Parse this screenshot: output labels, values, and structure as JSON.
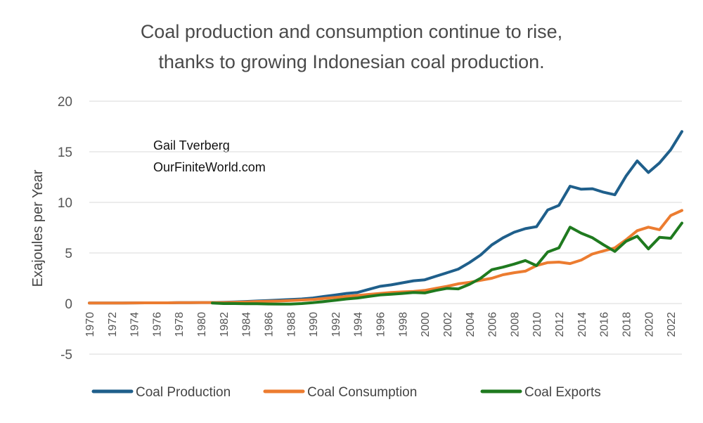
{
  "chart_data": {
    "type": "line",
    "title_line1": "Coal production and consumption continue to rise,",
    "title_line2": "thanks to growing Indonesian coal production.",
    "annotation_line1": "Gail Tverberg",
    "annotation_line2": "OurFiniteWorld.com",
    "xlabel": "",
    "ylabel": "Exajoules per Year",
    "ylim": [
      -5,
      20
    ],
    "y_ticks": [
      -5,
      0,
      5,
      10,
      15,
      20
    ],
    "x_tick_labels": [
      "1970",
      "1972",
      "1974",
      "1976",
      "1978",
      "1980",
      "1982",
      "1984",
      "1986",
      "1988",
      "1990",
      "1992",
      "1994",
      "1996",
      "1998",
      "2000",
      "2002",
      "2004",
      "2006",
      "2008",
      "2010",
      "2012",
      "2014",
      "2016",
      "2018",
      "2020",
      "2022"
    ],
    "grid": true,
    "legend_position": "bottom",
    "x": [
      1970,
      1971,
      1972,
      1973,
      1974,
      1975,
      1976,
      1977,
      1978,
      1979,
      1980,
      1981,
      1982,
      1983,
      1984,
      1985,
      1986,
      1987,
      1988,
      1989,
      1990,
      1991,
      1992,
      1993,
      1994,
      1995,
      1996,
      1997,
      1998,
      1999,
      2000,
      2001,
      2002,
      2003,
      2004,
      2005,
      2006,
      2007,
      2008,
      2009,
      2010,
      2011,
      2012,
      2013,
      2014,
      2015,
      2016,
      2017,
      2018,
      2019,
      2020,
      2021,
      2022,
      2023
    ],
    "series": [
      {
        "name": "Coal Production",
        "color": "#1f5f8b",
        "values": [
          0.05,
          0.05,
          0.05,
          0.05,
          0.06,
          0.07,
          0.07,
          0.07,
          0.08,
          0.08,
          0.1,
          0.1,
          0.12,
          0.15,
          0.2,
          0.25,
          0.3,
          0.35,
          0.4,
          0.45,
          0.55,
          0.7,
          0.85,
          1.0,
          1.1,
          1.4,
          1.7,
          1.85,
          2.05,
          2.25,
          2.35,
          2.7,
          3.05,
          3.4,
          4.05,
          4.8,
          5.8,
          6.5,
          7.05,
          7.4,
          7.6,
          9.25,
          9.7,
          11.6,
          11.3,
          11.35,
          11.0,
          10.75,
          12.6,
          14.1,
          12.95,
          13.9,
          15.2,
          17.0
        ]
      },
      {
        "name": "Coal Consumption",
        "color": "#ec7c30",
        "values": [
          0.05,
          0.05,
          0.05,
          0.05,
          0.06,
          0.07,
          0.07,
          0.07,
          0.08,
          0.08,
          0.1,
          0.1,
          0.1,
          0.12,
          0.15,
          0.2,
          0.22,
          0.25,
          0.3,
          0.35,
          0.4,
          0.5,
          0.6,
          0.7,
          0.8,
          0.9,
          1.0,
          1.1,
          1.15,
          1.2,
          1.3,
          1.5,
          1.7,
          1.95,
          2.1,
          2.3,
          2.5,
          2.85,
          3.05,
          3.2,
          3.75,
          4.05,
          4.1,
          3.95,
          4.3,
          4.9,
          5.2,
          5.5,
          6.3,
          7.2,
          7.55,
          7.3,
          8.7,
          9.2
        ]
      },
      {
        "name": "Coal Exports",
        "color": "#1f7a1f",
        "values": [
          null,
          null,
          null,
          null,
          null,
          null,
          null,
          null,
          null,
          null,
          null,
          0.05,
          0.0,
          0.0,
          -0.02,
          -0.02,
          -0.04,
          -0.05,
          -0.05,
          0.0,
          0.08,
          0.2,
          0.32,
          0.45,
          0.55,
          0.7,
          0.85,
          0.92,
          1.0,
          1.1,
          1.05,
          1.3,
          1.5,
          1.45,
          1.9,
          2.5,
          3.35,
          3.6,
          3.9,
          4.25,
          3.75,
          5.1,
          5.5,
          7.55,
          6.95,
          6.5,
          5.8,
          5.15,
          6.15,
          6.65,
          5.4,
          6.55,
          6.45,
          7.95
        ]
      }
    ]
  }
}
